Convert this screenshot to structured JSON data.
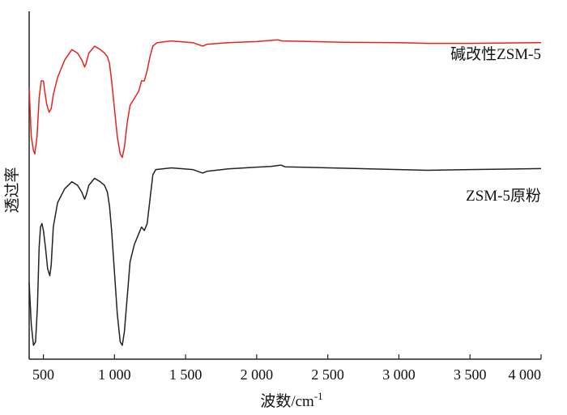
{
  "chart_data": {
    "type": "line",
    "title": "",
    "xlabel": "波数/cm",
    "xlabel_sup": "-1",
    "ylabel": "透过率",
    "xlim": [
      400,
      4000
    ],
    "xticks": [
      500,
      1000,
      1500,
      2000,
      2500,
      3000,
      3500,
      4000
    ],
    "xtick_labels": [
      "500",
      "1 000",
      "1 500",
      "2 000",
      "2 500",
      "3 000",
      "3 500",
      "4 000"
    ],
    "ylim": [
      0,
      100
    ],
    "grid": false,
    "legend": "inline-right",
    "series": [
      {
        "name": "碱改性ZSM-5",
        "color": "#e8231f",
        "points": [
          [
            400,
            78
          ],
          [
            415,
            64
          ],
          [
            430,
            60
          ],
          [
            440,
            59
          ],
          [
            455,
            64
          ],
          [
            470,
            75
          ],
          [
            485,
            80
          ],
          [
            500,
            80
          ],
          [
            510,
            77
          ],
          [
            525,
            73
          ],
          [
            540,
            71
          ],
          [
            555,
            72
          ],
          [
            570,
            76
          ],
          [
            600,
            81
          ],
          [
            650,
            86
          ],
          [
            700,
            89
          ],
          [
            740,
            88
          ],
          [
            770,
            86
          ],
          [
            790,
            84
          ],
          [
            800,
            85
          ],
          [
            820,
            88
          ],
          [
            860,
            90
          ],
          [
            900,
            89
          ],
          [
            930,
            88
          ],
          [
            950,
            87
          ],
          [
            965,
            85
          ],
          [
            980,
            80
          ],
          [
            1000,
            72
          ],
          [
            1020,
            64
          ],
          [
            1040,
            59
          ],
          [
            1055,
            58
          ],
          [
            1070,
            61
          ],
          [
            1090,
            68
          ],
          [
            1110,
            73
          ],
          [
            1140,
            75
          ],
          [
            1170,
            77
          ],
          [
            1190,
            80
          ],
          [
            1210,
            80
          ],
          [
            1230,
            83
          ],
          [
            1250,
            87
          ],
          [
            1270,
            90
          ],
          [
            1300,
            91
          ],
          [
            1400,
            91.5
          ],
          [
            1550,
            91
          ],
          [
            1620,
            90
          ],
          [
            1650,
            90.5
          ],
          [
            1800,
            91
          ],
          [
            2000,
            91.3
          ],
          [
            2150,
            91.8
          ],
          [
            2180,
            91.5
          ],
          [
            2300,
            91.4
          ],
          [
            2600,
            91.1
          ],
          [
            3000,
            91
          ],
          [
            3200,
            90.8
          ],
          [
            3500,
            90.8
          ],
          [
            4000,
            91
          ]
        ]
      },
      {
        "name": "ZSM-5原粉",
        "color": "#222222",
        "points": [
          [
            400,
            22
          ],
          [
            415,
            10
          ],
          [
            430,
            4
          ],
          [
            445,
            5
          ],
          [
            458,
            15
          ],
          [
            470,
            32
          ],
          [
            480,
            38
          ],
          [
            490,
            39
          ],
          [
            500,
            37
          ],
          [
            515,
            32
          ],
          [
            530,
            26
          ],
          [
            545,
            24
          ],
          [
            555,
            27
          ],
          [
            570,
            38
          ],
          [
            600,
            45
          ],
          [
            650,
            49
          ],
          [
            700,
            51
          ],
          [
            740,
            50
          ],
          [
            770,
            48
          ],
          [
            790,
            46
          ],
          [
            800,
            47
          ],
          [
            820,
            50
          ],
          [
            860,
            52
          ],
          [
            900,
            51
          ],
          [
            930,
            50
          ],
          [
            950,
            48
          ],
          [
            965,
            44
          ],
          [
            980,
            37
          ],
          [
            1000,
            25
          ],
          [
            1020,
            13
          ],
          [
            1040,
            5
          ],
          [
            1055,
            4
          ],
          [
            1070,
            8
          ],
          [
            1090,
            18
          ],
          [
            1110,
            28
          ],
          [
            1140,
            33
          ],
          [
            1170,
            36
          ],
          [
            1190,
            38
          ],
          [
            1210,
            37
          ],
          [
            1230,
            39
          ],
          [
            1250,
            46
          ],
          [
            1270,
            53
          ],
          [
            1290,
            54.5
          ],
          [
            1400,
            55
          ],
          [
            1550,
            54.5
          ],
          [
            1620,
            53.5
          ],
          [
            1650,
            54
          ],
          [
            1800,
            54.7
          ],
          [
            2000,
            55.2
          ],
          [
            2100,
            55.4
          ],
          [
            2170,
            55.8
          ],
          [
            2200,
            55.3
          ],
          [
            2300,
            55.2
          ],
          [
            2600,
            54.9
          ],
          [
            3000,
            54.5
          ],
          [
            3200,
            54.3
          ],
          [
            3500,
            54.5
          ],
          [
            4000,
            54.8
          ]
        ]
      }
    ]
  }
}
